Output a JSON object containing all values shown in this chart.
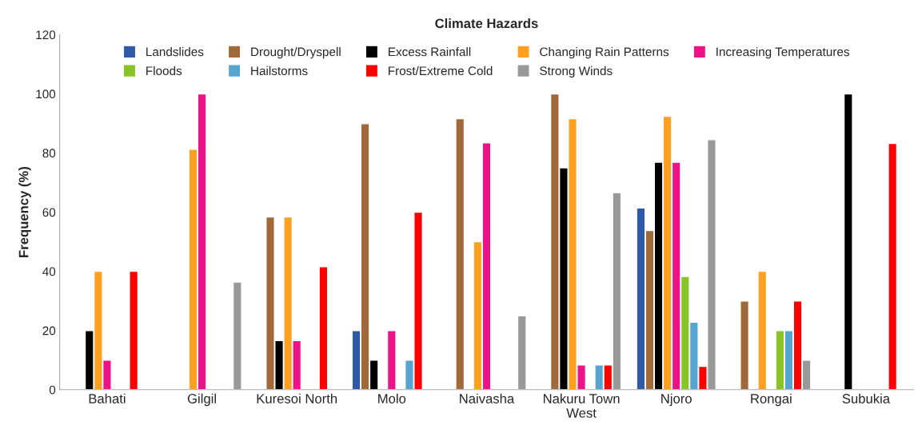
{
  "chart_data": {
    "type": "bar",
    "title": "Climate Hazards",
    "ylabel": "Frequency (%)",
    "categories": [
      "Bahati",
      "Gilgil",
      "Kuresoi North",
      "Molo",
      "Naivasha",
      "Nakuru Town\nWest",
      "Njoro",
      "Rongai",
      "Subukia"
    ],
    "series": [
      {
        "name": "Landslides",
        "color": "#2e5aa8",
        "values": [
          null,
          null,
          null,
          20,
          null,
          null,
          61.4,
          null,
          null
        ]
      },
      {
        "name": "Drought/Dryspell",
        "color": "#a0693a",
        "values": [
          null,
          null,
          58.4,
          89.9,
          91.6,
          100,
          53.8,
          30,
          null
        ]
      },
      {
        "name": "Excess Rainfall",
        "color": "#000000",
        "values": [
          20,
          null,
          16.6,
          10,
          null,
          75,
          76.9,
          null,
          100
        ]
      },
      {
        "name": "Changing Rain Patterns",
        "color": "#ffa020",
        "values": [
          40,
          81.3,
          58.4,
          null,
          50,
          91.6,
          92.4,
          40,
          null
        ]
      },
      {
        "name": "Increasing Temperatures",
        "color": "#ee1289",
        "values": [
          10,
          100,
          16.6,
          20,
          83.4,
          8.4,
          76.9,
          null,
          null
        ]
      },
      {
        "name": "Floods",
        "color": "#88c426",
        "values": [
          null,
          null,
          null,
          null,
          null,
          null,
          38.3,
          20,
          null
        ]
      },
      {
        "name": "Hailstorms",
        "color": "#55a5d0",
        "values": [
          null,
          null,
          null,
          10,
          null,
          8.4,
          22.8,
          20,
          null
        ]
      },
      {
        "name": "Frost/Extreme Cold",
        "color": "#ff0000",
        "values": [
          40,
          null,
          41.6,
          60,
          null,
          8.4,
          7.9,
          30,
          83.2
        ]
      },
      {
        "name": "Strong Winds",
        "color": "#999999",
        "values": [
          null,
          36.4,
          null,
          null,
          25,
          66.6,
          84.5,
          10,
          null
        ]
      }
    ],
    "ylim": [
      0,
      120
    ],
    "yticks": [
      0,
      20,
      40,
      60,
      80,
      100,
      120
    ],
    "grid": false,
    "legend": "top"
  }
}
